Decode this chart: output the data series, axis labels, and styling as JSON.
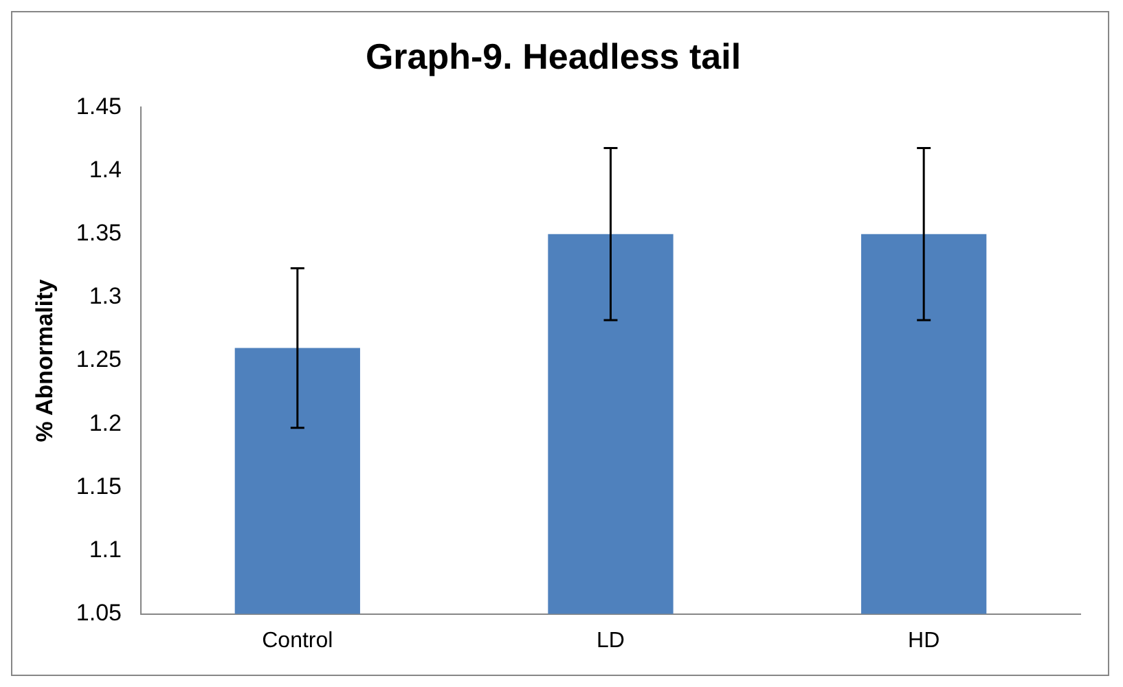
{
  "chart_data": {
    "type": "bar",
    "title": "Graph-9. Headless tail",
    "ylabel": "% Abnormality",
    "categories": [
      "Control",
      "LD",
      "HD"
    ],
    "series": [
      {
        "color": "#4f81bd",
        "values": [
          1.26,
          1.35,
          1.35
        ],
        "errors": [
          0.063,
          0.068,
          0.068
        ]
      }
    ],
    "ylim": [
      1.05,
      1.45
    ],
    "yticks": [
      1.05,
      1.1,
      1.15,
      1.2,
      1.25,
      1.3,
      1.35,
      1.4,
      1.45
    ],
    "grid": false,
    "legend": false
  }
}
